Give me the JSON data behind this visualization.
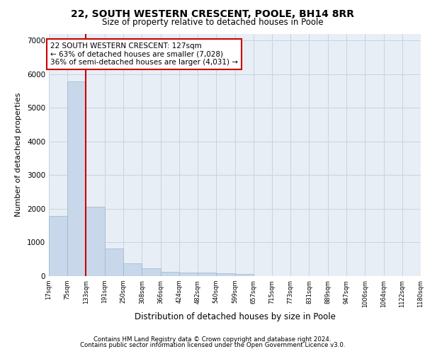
{
  "title1": "22, SOUTH WESTERN CRESCENT, POOLE, BH14 8RR",
  "title2": "Size of property relative to detached houses in Poole",
  "xlabel": "Distribution of detached houses by size in Poole",
  "ylabel": "Number of detached properties",
  "bin_labels": [
    "17sqm",
    "75sqm",
    "133sqm",
    "191sqm",
    "250sqm",
    "308sqm",
    "366sqm",
    "424sqm",
    "482sqm",
    "540sqm",
    "599sqm",
    "657sqm",
    "715sqm",
    "773sqm",
    "831sqm",
    "889sqm",
    "947sqm",
    "1006sqm",
    "1064sqm",
    "1122sqm",
    "1180sqm"
  ],
  "bin_starts": [
    17,
    75,
    133,
    191,
    250,
    308,
    366,
    424,
    482,
    540,
    599,
    657,
    715,
    773,
    831,
    889,
    947,
    1006,
    1064,
    1122,
    1180
  ],
  "bar_values": [
    1780,
    5780,
    2060,
    820,
    370,
    240,
    130,
    110,
    110,
    80,
    60,
    0,
    0,
    0,
    0,
    0,
    0,
    0,
    0,
    0
  ],
  "bar_color": "#c8d8ea",
  "bar_edge_color": "#9ab5cc",
  "grid_color": "#c8d4e0",
  "property_line_x": 133,
  "property_line_color": "#cc0000",
  "annotation_text": "22 SOUTH WESTERN CRESCENT: 127sqm\n← 63% of detached houses are smaller (7,028)\n36% of semi-detached houses are larger (4,031) →",
  "annotation_box_color": "#cc0000",
  "ylim": [
    0,
    7200
  ],
  "yticks": [
    0,
    1000,
    2000,
    3000,
    4000,
    5000,
    6000,
    7000
  ],
  "footnote1": "Contains HM Land Registry data © Crown copyright and database right 2024.",
  "footnote2": "Contains public sector information licensed under the Open Government Licence v3.0.",
  "bg_color": "white",
  "plot_bg_color": "#e8eef5"
}
